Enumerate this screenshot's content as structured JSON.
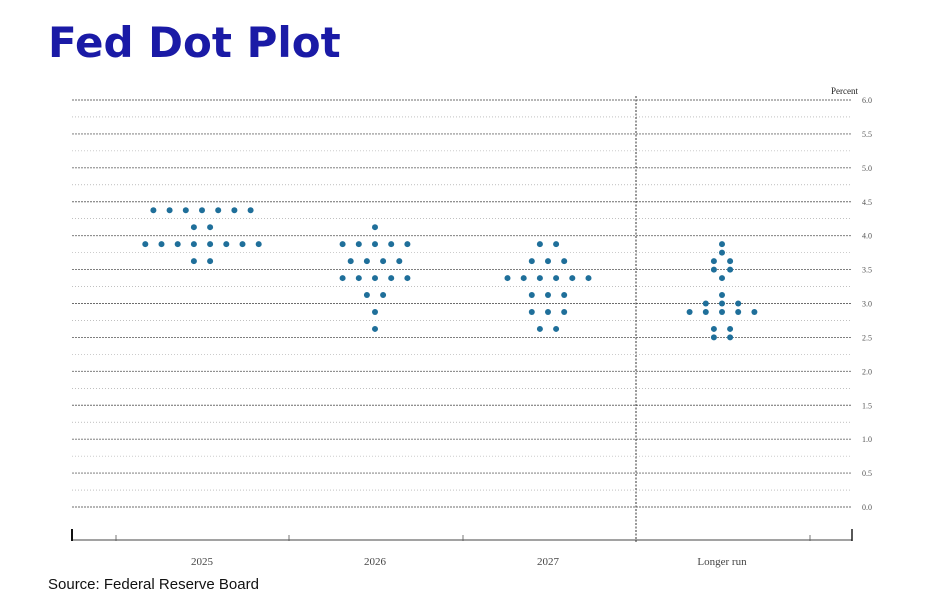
{
  "header": {
    "title": "Fed Dot Plot"
  },
  "footer": {
    "source": "Source: Federal Reserve Board"
  },
  "chart_data": {
    "type": "scatter",
    "title": "Fed Dot Plot",
    "ylabel": "Percent",
    "xlabel": "",
    "ylim": [
      0,
      6.0
    ],
    "yticks": [
      "0.0",
      "0.5",
      "1.0",
      "1.5",
      "2.0",
      "2.5",
      "3.0",
      "3.5",
      "4.0",
      "4.5",
      "5.0",
      "5.5",
      "6.0"
    ],
    "categories": [
      "2025",
      "2026",
      "2027",
      "Longer run"
    ],
    "grid": true,
    "dot_color": "#1f6f9a",
    "columns": [
      {
        "category": "2025",
        "dots": [
          {
            "value": 4.375,
            "count": 7
          },
          {
            "value": 4.125,
            "count": 2
          },
          {
            "value": 3.875,
            "count": 8
          },
          {
            "value": 3.625,
            "count": 2
          }
        ]
      },
      {
        "category": "2026",
        "dots": [
          {
            "value": 4.125,
            "count": 1
          },
          {
            "value": 3.875,
            "count": 5
          },
          {
            "value": 3.625,
            "count": 4
          },
          {
            "value": 3.375,
            "count": 5
          },
          {
            "value": 3.125,
            "count": 2
          },
          {
            "value": 2.875,
            "count": 1
          },
          {
            "value": 2.625,
            "count": 1
          }
        ]
      },
      {
        "category": "2027",
        "dots": [
          {
            "value": 3.875,
            "count": 2
          },
          {
            "value": 3.625,
            "count": 3
          },
          {
            "value": 3.375,
            "count": 6
          },
          {
            "value": 3.125,
            "count": 3
          },
          {
            "value": 2.875,
            "count": 3
          },
          {
            "value": 2.625,
            "count": 2
          }
        ]
      },
      {
        "category": "Longer run",
        "dots": [
          {
            "value": 3.875,
            "count": 1
          },
          {
            "value": 3.75,
            "count": 1
          },
          {
            "value": 3.625,
            "count": 2
          },
          {
            "value": 3.5,
            "count": 2
          },
          {
            "value": 3.375,
            "count": 1
          },
          {
            "value": 3.125,
            "count": 1
          },
          {
            "value": 3.0,
            "count": 3
          },
          {
            "value": 2.875,
            "count": 5
          },
          {
            "value": 2.625,
            "count": 2
          },
          {
            "value": 2.5,
            "count": 2
          }
        ]
      }
    ]
  }
}
